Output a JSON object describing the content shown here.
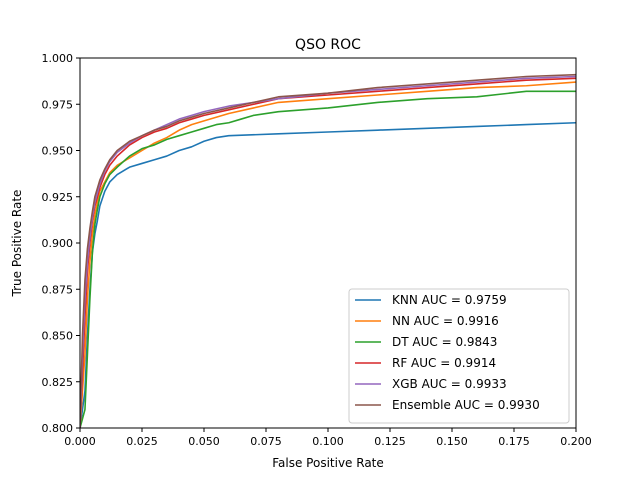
{
  "chart_data": {
    "type": "line",
    "title": "QSO ROC",
    "xlabel": "False Positive Rate",
    "ylabel": "True Positive Rate",
    "xlim": [
      0.0,
      0.2
    ],
    "ylim": [
      0.8,
      1.0
    ],
    "xticks": [
      "0.000",
      "0.025",
      "0.050",
      "0.075",
      "0.100",
      "0.125",
      "0.150",
      "0.175",
      "0.200"
    ],
    "yticks": [
      "0.800",
      "0.825",
      "0.850",
      "0.875",
      "0.900",
      "0.925",
      "0.950",
      "0.975",
      "1.000"
    ],
    "grid": false,
    "legend_position": "lower right",
    "series": [
      {
        "name": "KNN AUC = 0.9759",
        "color": "#1f77b4",
        "x": [
          0.0,
          0.002,
          0.003,
          0.004,
          0.005,
          0.006,
          0.007,
          0.008,
          0.01,
          0.012,
          0.015,
          0.02,
          0.025,
          0.03,
          0.035,
          0.04,
          0.045,
          0.05,
          0.055,
          0.06,
          0.08,
          0.1,
          0.12,
          0.14,
          0.16,
          0.18,
          0.2
        ],
        "y": [
          0.8,
          0.82,
          0.85,
          0.875,
          0.895,
          0.905,
          0.912,
          0.92,
          0.928,
          0.933,
          0.937,
          0.941,
          0.943,
          0.945,
          0.947,
          0.95,
          0.952,
          0.955,
          0.957,
          0.958,
          0.959,
          0.96,
          0.961,
          0.962,
          0.963,
          0.964,
          0.965
        ]
      },
      {
        "name": "NN AUC = 0.9916",
        "color": "#ff7f0e",
        "x": [
          0.0,
          0.002,
          0.003,
          0.004,
          0.005,
          0.006,
          0.007,
          0.008,
          0.01,
          0.012,
          0.015,
          0.02,
          0.025,
          0.03,
          0.035,
          0.04,
          0.045,
          0.05,
          0.06,
          0.07,
          0.08,
          0.1,
          0.12,
          0.14,
          0.16,
          0.18,
          0.2
        ],
        "y": [
          0.8,
          0.84,
          0.87,
          0.89,
          0.905,
          0.915,
          0.922,
          0.928,
          0.933,
          0.938,
          0.942,
          0.946,
          0.95,
          0.954,
          0.957,
          0.961,
          0.964,
          0.966,
          0.97,
          0.973,
          0.976,
          0.978,
          0.98,
          0.982,
          0.984,
          0.985,
          0.987
        ]
      },
      {
        "name": "DT AUC = 0.9843",
        "color": "#2ca02c",
        "x": [
          0.0,
          0.002,
          0.003,
          0.004,
          0.005,
          0.006,
          0.007,
          0.008,
          0.01,
          0.012,
          0.015,
          0.02,
          0.025,
          0.03,
          0.035,
          0.04,
          0.045,
          0.05,
          0.055,
          0.06,
          0.065,
          0.07,
          0.08,
          0.1,
          0.12,
          0.14,
          0.16,
          0.18,
          0.2
        ],
        "y": [
          0.8,
          0.81,
          0.84,
          0.87,
          0.895,
          0.91,
          0.918,
          0.925,
          0.932,
          0.937,
          0.941,
          0.947,
          0.951,
          0.953,
          0.956,
          0.958,
          0.96,
          0.962,
          0.964,
          0.965,
          0.967,
          0.969,
          0.971,
          0.973,
          0.976,
          0.978,
          0.979,
          0.982,
          0.982
        ]
      },
      {
        "name": "RF AUC = 0.9914",
        "color": "#d62728",
        "x": [
          0.0,
          0.001,
          0.002,
          0.003,
          0.004,
          0.005,
          0.006,
          0.008,
          0.01,
          0.012,
          0.015,
          0.02,
          0.025,
          0.03,
          0.035,
          0.04,
          0.045,
          0.05,
          0.06,
          0.07,
          0.08,
          0.1,
          0.12,
          0.14,
          0.16,
          0.18,
          0.2
        ],
        "y": [
          0.8,
          0.83,
          0.86,
          0.885,
          0.9,
          0.912,
          0.92,
          0.93,
          0.937,
          0.942,
          0.947,
          0.953,
          0.957,
          0.96,
          0.962,
          0.965,
          0.967,
          0.969,
          0.972,
          0.975,
          0.978,
          0.98,
          0.982,
          0.984,
          0.986,
          0.988,
          0.989
        ]
      },
      {
        "name": "XGB AUC = 0.9933",
        "color": "#9467bd",
        "x": [
          0.0,
          0.001,
          0.002,
          0.003,
          0.004,
          0.005,
          0.006,
          0.008,
          0.01,
          0.012,
          0.015,
          0.02,
          0.025,
          0.03,
          0.035,
          0.04,
          0.045,
          0.05,
          0.06,
          0.07,
          0.08,
          0.1,
          0.12,
          0.14,
          0.16,
          0.18,
          0.2
        ],
        "y": [
          0.8,
          0.84,
          0.87,
          0.89,
          0.903,
          0.914,
          0.922,
          0.932,
          0.939,
          0.944,
          0.949,
          0.954,
          0.958,
          0.961,
          0.964,
          0.967,
          0.969,
          0.971,
          0.974,
          0.976,
          0.978,
          0.981,
          0.983,
          0.985,
          0.987,
          0.989,
          0.99
        ]
      },
      {
        "name": "Ensemble AUC = 0.9930",
        "color": "#8c564b",
        "x": [
          0.0,
          0.001,
          0.002,
          0.003,
          0.004,
          0.005,
          0.006,
          0.008,
          0.01,
          0.012,
          0.015,
          0.02,
          0.025,
          0.03,
          0.035,
          0.04,
          0.045,
          0.05,
          0.06,
          0.07,
          0.08,
          0.1,
          0.12,
          0.14,
          0.16,
          0.18,
          0.2
        ],
        "y": [
          0.8,
          0.85,
          0.88,
          0.897,
          0.908,
          0.917,
          0.925,
          0.934,
          0.94,
          0.945,
          0.95,
          0.955,
          0.958,
          0.961,
          0.963,
          0.966,
          0.968,
          0.97,
          0.973,
          0.976,
          0.979,
          0.981,
          0.984,
          0.986,
          0.988,
          0.99,
          0.991
        ]
      }
    ]
  }
}
